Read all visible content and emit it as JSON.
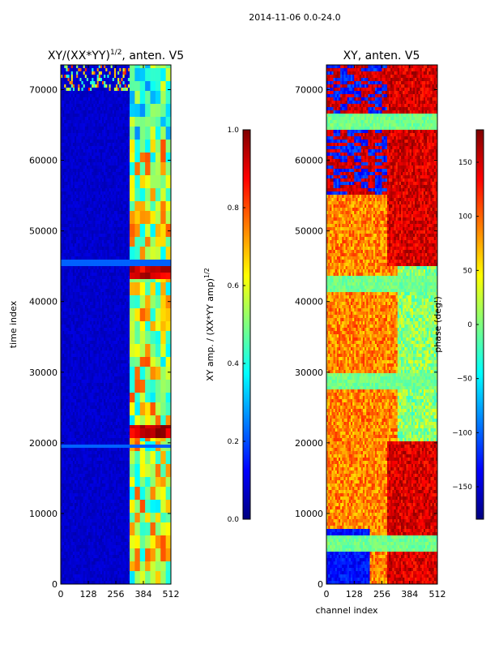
{
  "figure": {
    "suptitle": "2014-11-06 0.0-24.0"
  },
  "colors": {
    "background": "#00007f",
    "jet_stops": [
      "#00007f",
      "#0000ff",
      "#007fff",
      "#00ffff",
      "#7fff7f",
      "#ffff00",
      "#ff7f00",
      "#ff0000",
      "#7f0000"
    ]
  },
  "chart_data": [
    {
      "type": "heatmap",
      "title": "XY/(XX*YY)",
      "title_sup": "1/2",
      "title_suffix": ", anten. V5",
      "xlabel": "",
      "ylabel": "time index",
      "xlim": [
        0,
        512
      ],
      "ylim": [
        0,
        73500
      ],
      "xticks": [
        0,
        128,
        256,
        384,
        512
      ],
      "yticks": [
        0,
        10000,
        20000,
        30000,
        40000,
        50000,
        60000,
        70000
      ],
      "colorbar": {
        "label": "XY amp. / (XX*YY amp)",
        "label_sup": "1/2",
        "vmin": 0.0,
        "vmax": 1.0,
        "ticks": [
          "0.0",
          "0.2",
          "0.4",
          "0.6",
          "0.8",
          "1.0"
        ]
      },
      "description": "Normalized cross-correlation amplitude; mostly low (~0.05) across channels 0-320, higher (0.4-1.0) banded structure in channels ~320-512"
    },
    {
      "type": "heatmap",
      "title": "XY, anten. V5",
      "xlabel": "channel index",
      "ylabel": "",
      "xlim": [
        0,
        512
      ],
      "ylim": [
        0,
        73500
      ],
      "xticks": [
        0,
        128,
        256,
        384,
        512
      ],
      "yticks": [
        0,
        10000,
        20000,
        30000,
        40000,
        50000,
        60000,
        70000
      ],
      "colorbar": {
        "label": "phase (deg.)",
        "vmin": -180,
        "vmax": 180,
        "ticks": [
          "150",
          "100",
          "50",
          "0",
          "−50",
          "−100",
          "−150"
        ]
      },
      "description": "Cross-correlation phase; mostly +50 to +120 deg, negative phases near time 0-8000 and above 55000 at low channels, red (~150 deg) at high channels"
    }
  ]
}
